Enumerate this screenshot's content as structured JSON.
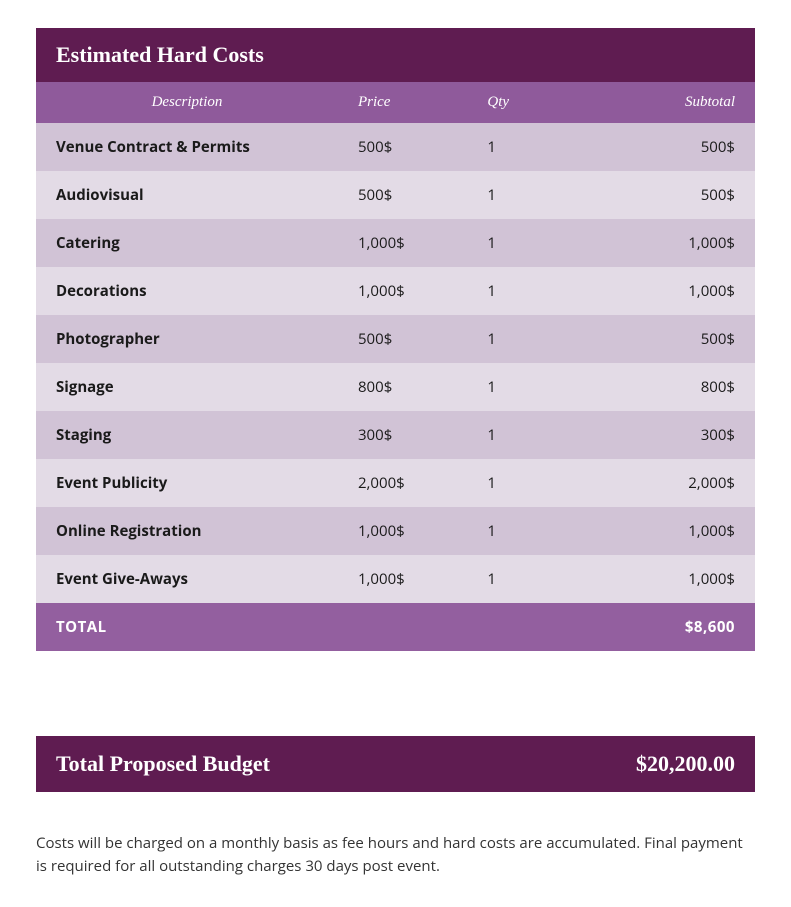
{
  "colors": {
    "header_bg": "#5f1c51",
    "thead_bg": "#8f5a9b",
    "row_odd_bg": "#d1c3d6",
    "row_even_bg": "#e3dbe6",
    "total_row_bg": "#935f9f",
    "budget_bar_bg": "#5f1c51",
    "header_text": "#ffffff",
    "cell_text": "#1a1a1a",
    "body_text": "#333333"
  },
  "header": {
    "title": "Estimated Hard Costs"
  },
  "table": {
    "columns": {
      "description": "Description",
      "price": "Price",
      "qty": "Qty",
      "subtotal": "Subtotal"
    },
    "rows": [
      {
        "description": "Venue Contract & Permits",
        "price": "500$",
        "qty": "1",
        "subtotal": "500$"
      },
      {
        "description": "Audiovisual",
        "price": "500$",
        "qty": "1",
        "subtotal": "500$"
      },
      {
        "description": "Catering",
        "price": "1,000$",
        "qty": "1",
        "subtotal": "1,000$"
      },
      {
        "description": "Decorations",
        "price": "1,000$",
        "qty": "1",
        "subtotal": "1,000$"
      },
      {
        "description": "Photographer",
        "price": "500$",
        "qty": "1",
        "subtotal": "500$"
      },
      {
        "description": "Signage",
        "price": "800$",
        "qty": "1",
        "subtotal": "800$"
      },
      {
        "description": "Staging",
        "price": "300$",
        "qty": "1",
        "subtotal": "300$"
      },
      {
        "description": "Event Publicity",
        "price": "2,000$",
        "qty": "1",
        "subtotal": "2,000$"
      },
      {
        "description": "Online Registration",
        "price": "1,000$",
        "qty": "1",
        "subtotal": "1,000$"
      },
      {
        "description": "Event Give-Aways",
        "price": "1,000$",
        "qty": "1",
        "subtotal": "1,000$"
      }
    ],
    "total": {
      "label": "TOTAL",
      "value": "$8,600"
    }
  },
  "budget": {
    "label": "Total Proposed Budget",
    "value": "$20,200.00"
  },
  "footnote": "Costs will be charged on a monthly basis as fee hours and hard costs are accumulated. Final payment is required for all outstanding charges 30 days post event."
}
